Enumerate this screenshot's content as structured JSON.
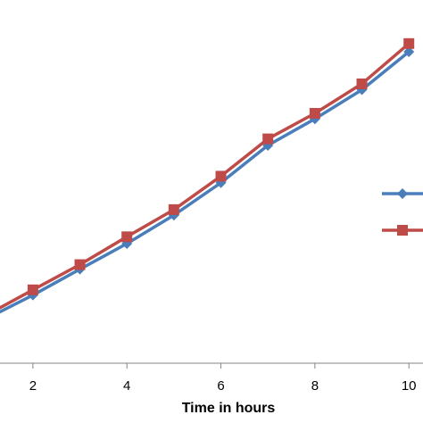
{
  "chart_data": {
    "type": "line",
    "xlabel": "Time in hours",
    "ylabel": "",
    "title": "",
    "xlim": [
      1.3,
      10.3
    ],
    "ylim": [
      0,
      100
    ],
    "x_ticks": [
      "2",
      "4",
      "6",
      "8",
      "10"
    ],
    "x": [
      1,
      2,
      3,
      4,
      5,
      6,
      7,
      8,
      9,
      10
    ],
    "grid": false,
    "legend": "right",
    "series": [
      {
        "color": "#4a7ebb",
        "marker": "diamond",
        "values": [
          13.5,
          20.8,
          28.7,
          36.5,
          45.2,
          55.1,
          66.5,
          74.6,
          83.5,
          95.1
        ]
      },
      {
        "color": "#be4b48",
        "marker": "square",
        "values": [
          14.6,
          22.4,
          30.1,
          38.6,
          46.9,
          57.1,
          68.5,
          76.3,
          85.3,
          97.6
        ]
      }
    ]
  }
}
